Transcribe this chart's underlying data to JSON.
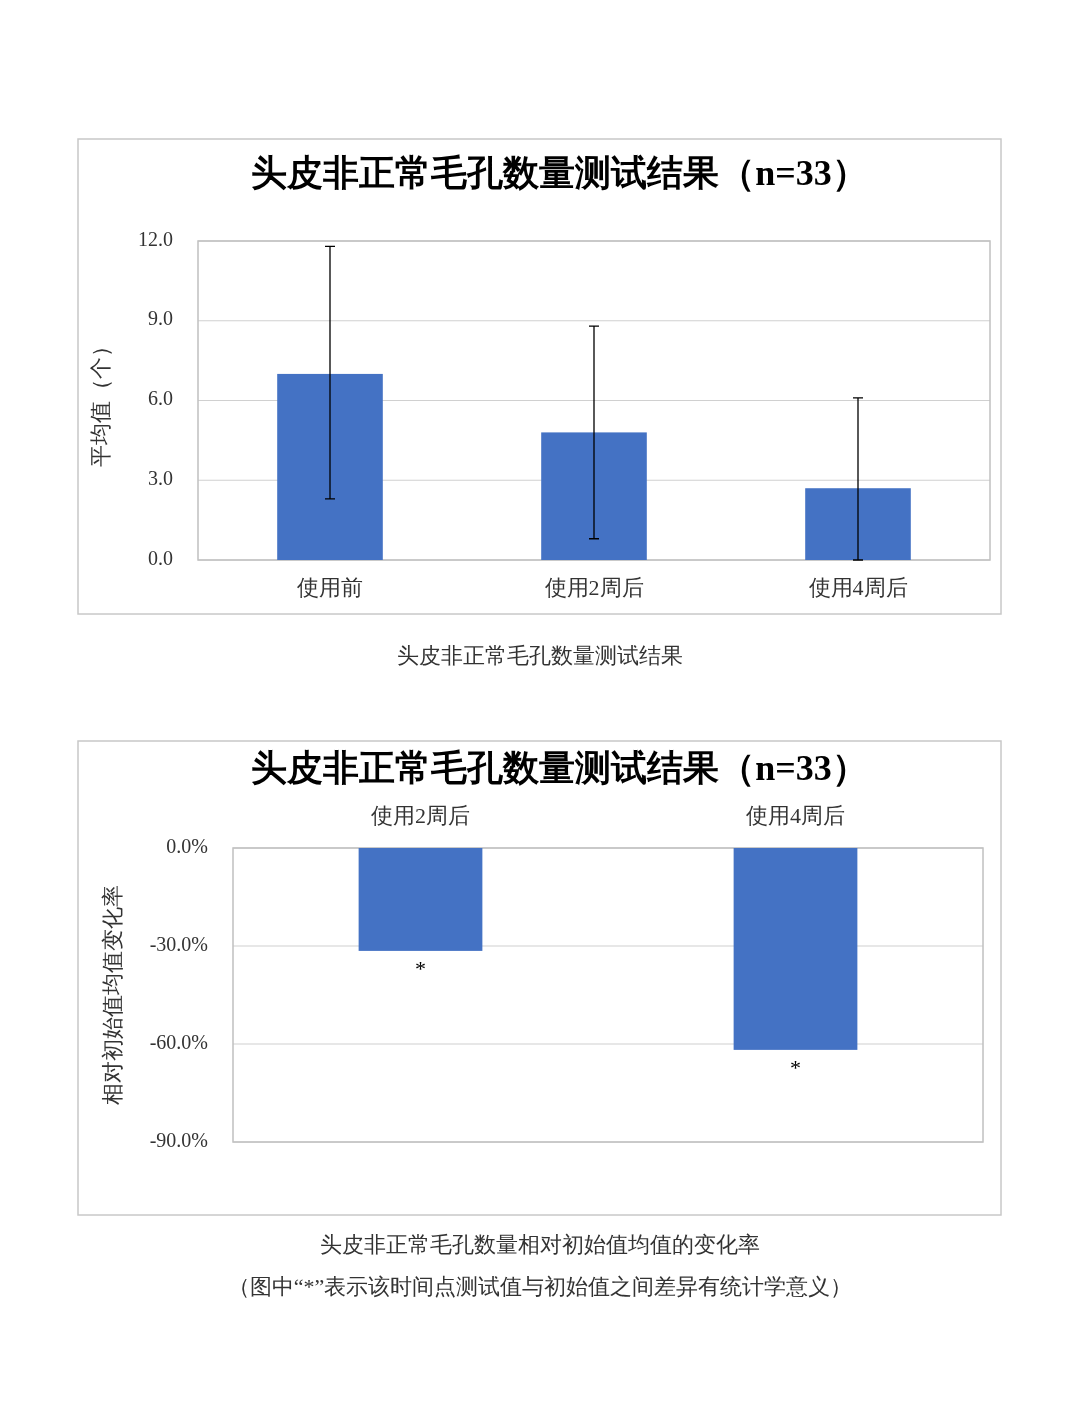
{
  "chart_data": [
    {
      "type": "bar",
      "title": "头皮非正常毛孔数量测试结果（n=33）",
      "ylabel": "平均值（个）",
      "categories": [
        "使用前",
        "使用2周后",
        "使用4周后"
      ],
      "series": [
        {
          "color": "#4472c4",
          "values": [
            7.0,
            4.8,
            2.7
          ],
          "errors": [
            [
              2.3,
              11.8
            ],
            4.0,
            [
              0,
              6.1
            ]
          ]
        }
      ],
      "ylim": [
        0,
        12
      ],
      "yticks": [
        {
          "value": 0,
          "label": "0.0"
        },
        {
          "value": 3,
          "label": "3.0"
        },
        {
          "value": 6,
          "label": "6.0"
        },
        {
          "value": 9,
          "label": "9.0"
        },
        {
          "value": 12,
          "label": "12.0"
        }
      ],
      "grid": "y",
      "annotations": [
        "头皮非正常毛孔数量测试结果"
      ]
    },
    {
      "type": "bar",
      "title": "头皮非正常毛孔数量测试结果（n=33）",
      "ylabel": "相对初始值均值变化率",
      "categories": [
        "使用2周后",
        "使用4周后"
      ],
      "series": [
        {
          "color": "#4472c4",
          "values": [
            -31.5,
            -61.8
          ]
        }
      ],
      "ylim": [
        -90,
        0
      ],
      "yticks": [
        {
          "value": 0,
          "label": "0.0%"
        },
        {
          "value": -30,
          "label": "-30.0%"
        },
        {
          "value": -60,
          "label": "-60.0%"
        },
        {
          "value": -90,
          "label": "-90.0%"
        }
      ],
      "grid": "y",
      "annotations": [
        {
          "text": "*",
          "x": "使用2周后",
          "y": -31.5
        },
        {
          "text": "*",
          "x": "使用4周后",
          "y": -61.8
        },
        "头皮非正常毛孔数量相对初始值均值的变化率",
        "（图中“*”表示该时间点测试值与初始值之间差异有统计学意义）"
      ]
    }
  ]
}
